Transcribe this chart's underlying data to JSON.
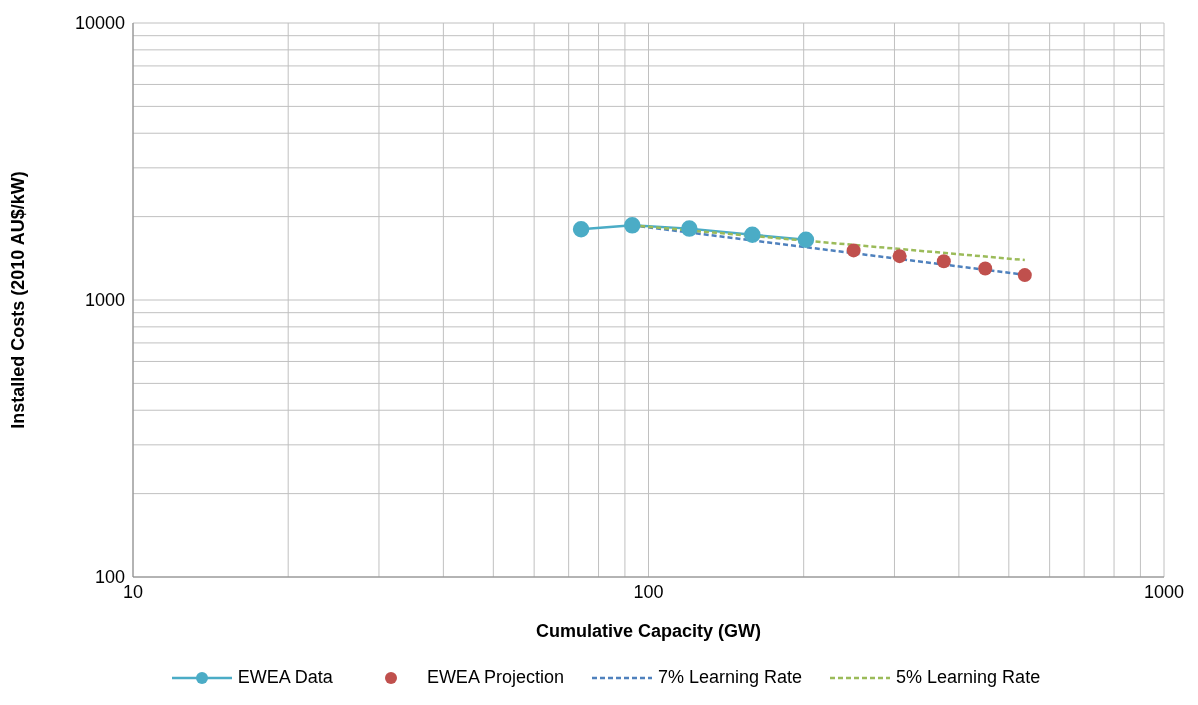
{
  "chart_data": {
    "type": "line",
    "xlabel": "Cumulative Capacity (GW)",
    "ylabel": "Installed Costs (2010 AU$/kW)",
    "log": "xy",
    "grid": true,
    "legend": "bottom",
    "xlim": [
      10,
      1000
    ],
    "ylim": [
      100,
      10000
    ],
    "xticks": [
      10,
      {
        "value": 20,
        "label": null
      },
      {
        "value": 30,
        "label": null
      },
      {
        "value": 40,
        "label": null
      },
      {
        "value": 50,
        "label": null
      },
      {
        "value": 60,
        "label": null
      },
      {
        "value": 70,
        "label": null
      },
      {
        "value": 80,
        "label": null
      },
      {
        "value": 90,
        "label": null
      },
      100,
      {
        "value": 200,
        "label": null
      },
      {
        "value": 300,
        "label": null
      },
      {
        "value": 400,
        "label": null
      },
      {
        "value": 500,
        "label": null
      },
      {
        "value": 600,
        "label": null
      },
      {
        "value": 700,
        "label": null
      },
      {
        "value": 800,
        "label": null
      },
      {
        "value": 900,
        "label": null
      },
      1000
    ],
    "yticks": [
      100,
      {
        "value": 200,
        "label": null
      },
      {
        "value": 300,
        "label": null
      },
      {
        "value": 400,
        "label": null
      },
      {
        "value": 500,
        "label": null
      },
      {
        "value": 600,
        "label": null
      },
      {
        "value": 700,
        "label": null
      },
      {
        "value": 800,
        "label": null
      },
      {
        "value": 900,
        "label": null
      },
      1000,
      {
        "value": 2000,
        "label": null
      },
      {
        "value": 3000,
        "label": null
      },
      {
        "value": 4000,
        "label": null
      },
      {
        "value": 5000,
        "label": null
      },
      {
        "value": 6000,
        "label": null
      },
      {
        "value": 7000,
        "label": null
      },
      {
        "value": 8000,
        "label": null
      },
      {
        "value": 9000,
        "label": null
      },
      10000
    ],
    "series": [
      {
        "name": "EWEA Data",
        "color": "#4bacc6",
        "marker": "circle",
        "line_style": "solid",
        "x": [
          74,
          93,
          120,
          159,
          202
        ],
        "values": [
          1800,
          1860,
          1810,
          1720,
          1650
        ]
      },
      {
        "name": "EWEA Projection",
        "type": "scatter",
        "color": "#c0504d",
        "marker": "circle",
        "x": [
          250,
          307,
          374,
          450,
          537
        ],
        "values": [
          1510,
          1440,
          1380,
          1300,
          1230
        ]
      },
      {
        "name": "7% Learning Rate",
        "color": "#4f81bd",
        "marker": "none",
        "line_style": "dashed",
        "x": [
          93,
          537
        ],
        "values": [
          1860,
          1233
        ]
      },
      {
        "name": "5% Learning Rate",
        "color": "#9bbb59",
        "marker": "none",
        "line_style": "dashed",
        "x": [
          93,
          537
        ],
        "values": [
          1860,
          1394
        ]
      }
    ]
  }
}
